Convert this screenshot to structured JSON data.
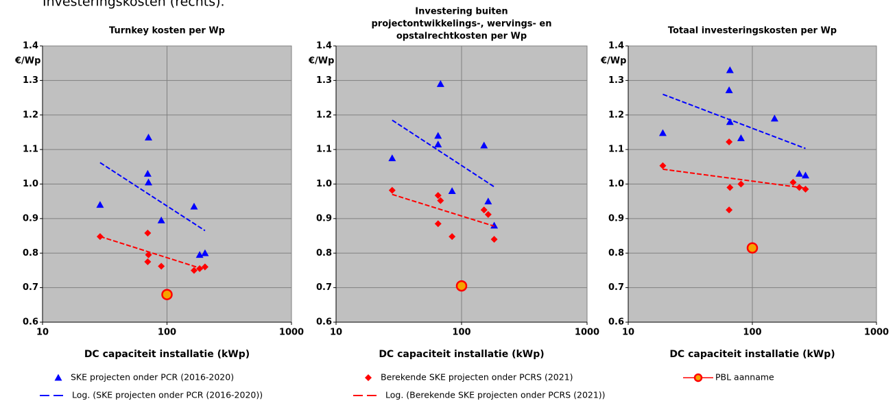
{
  "intro_text": "Investeringskosten (rechts).",
  "legend": [
    {
      "name": "SKE projecten onder PCR (2016-2020)",
      "color": "#0000ff",
      "marker": "triangle"
    },
    {
      "name": "Berekende SKE projecten onder PCRS (2021)",
      "color": "#ff0000",
      "marker": "diamond"
    },
    {
      "name": "PBL aanname",
      "color": "#ff0000",
      "marker": "circle-line"
    },
    {
      "name": "Log. (SKE projecten onder PCR (2016-2020))",
      "color": "#0000ff",
      "marker": "dash"
    },
    {
      "name": "Log. (Berekende SKE projecten onder PCRS (2021))",
      "color": "#ff0000",
      "marker": "dash"
    }
  ],
  "chart_data": [
    {
      "type": "scatter",
      "title": "Turnkey kosten per Wp",
      "y_label": "€/Wp",
      "x_label": "DC capaciteit installatie (kWp)",
      "x_scale": "log",
      "xlim": [
        10,
        1000
      ],
      "xticks": [
        10,
        100,
        1000
      ],
      "ylim": [
        0.6,
        1.4
      ],
      "yticks": [
        0.6,
        0.7,
        0.8,
        0.9,
        {
          "value": 1,
          "label": "1.0"
        },
        1.1,
        1.2,
        1.3,
        1.4
      ],
      "grid": true,
      "background": "#c0c0c0",
      "series": [
        {
          "marker": "triangle",
          "color": "#0000ff",
          "x": [
            29,
            71,
            70,
            71,
            90,
            165,
            183,
            202
          ],
          "values": [
            0.94,
            1.135,
            1.03,
            1.005,
            0.895,
            0.935,
            0.795,
            0.8
          ]
        },
        {
          "marker": "diamond",
          "color": "#ff0000",
          "x": [
            29,
            70,
            70,
            71,
            90,
            165,
            183,
            202
          ],
          "values": [
            0.848,
            0.858,
            0.775,
            0.795,
            0.762,
            0.75,
            0.755,
            0.76
          ]
        },
        {
          "marker": "circle",
          "color": "#ff0000",
          "fill": "#f5a300",
          "x": [
            100
          ],
          "values": [
            0.68
          ]
        },
        {
          "marker": "dash",
          "color": "#0000ff",
          "x": [
            29,
            202
          ],
          "values": [
            1.062,
            0.865
          ]
        },
        {
          "marker": "dash",
          "color": "#ff0000",
          "x": [
            29,
            202
          ],
          "values": [
            0.848,
            0.752
          ]
        }
      ]
    },
    {
      "type": "scatter",
      "title": [
        "Investering buiten",
        "projectontwikkelings-, wervings- en",
        "opstalrechtkosten per Wp"
      ],
      "y_label": "€/Wp",
      "x_label": "DC capaciteit installatie (kWp)",
      "x_scale": "log",
      "xlim": [
        10,
        1000
      ],
      "xticks": [
        10,
        100,
        1000
      ],
      "ylim": [
        0.6,
        1.4
      ],
      "yticks": [
        0.6,
        0.7,
        0.8,
        0.9,
        {
          "value": 1,
          "label": "1.0"
        },
        1.1,
        1.2,
        1.3,
        1.4
      ],
      "grid": true,
      "background": "#c0c0c0",
      "series": [
        {
          "marker": "triangle",
          "color": "#0000ff",
          "x": [
            28,
            68,
            65,
            65,
            84,
            151,
            163,
            182
          ],
          "values": [
            1.075,
            1.29,
            1.14,
            1.115,
            0.98,
            1.112,
            0.95,
            0.88
          ]
        },
        {
          "marker": "diamond",
          "color": "#ff0000",
          "x": [
            28,
            65,
            68,
            65,
            84,
            151,
            163,
            182
          ],
          "values": [
            0.982,
            0.967,
            0.952,
            0.885,
            0.848,
            0.925,
            0.912,
            0.84
          ]
        },
        {
          "marker": "circle",
          "color": "#ff0000",
          "fill": "#f5a300",
          "x": [
            100
          ],
          "values": [
            0.705
          ]
        },
        {
          "marker": "dash",
          "color": "#0000ff",
          "x": [
            28,
            182
          ],
          "values": [
            1.185,
            0.992
          ]
        },
        {
          "marker": "dash",
          "color": "#ff0000",
          "x": [
            28,
            182
          ],
          "values": [
            0.97,
            0.878
          ]
        }
      ]
    },
    {
      "type": "scatter",
      "title": "Totaal investeringskosten per Wp",
      "y_label": "€/Wp",
      "x_label": "DC capaciteit installatie (kWp)",
      "x_scale": "log",
      "xlim": [
        10,
        1000
      ],
      "xticks": [
        10,
        100,
        1000
      ],
      "ylim": [
        0.6,
        1.4
      ],
      "yticks": [
        0.6,
        0.7,
        0.8,
        0.9,
        {
          "value": 1,
          "label": "1.0"
        },
        1.1,
        1.2,
        1.3,
        1.4
      ],
      "grid": true,
      "background": "#c0c0c0",
      "series": [
        {
          "marker": "triangle",
          "color": "#0000ff",
          "x": [
            19,
            66,
            65,
            66,
            81,
            151,
            239,
            268
          ],
          "values": [
            1.148,
            1.33,
            1.272,
            1.18,
            1.133,
            1.19,
            1.03,
            1.025
          ]
        },
        {
          "marker": "diamond",
          "color": "#ff0000",
          "x": [
            19,
            65,
            66,
            65,
            81,
            213,
            239,
            268
          ],
          "values": [
            1.053,
            1.122,
            0.99,
            0.925,
            1.0,
            1.005,
            0.99,
            0.985
          ]
        },
        {
          "marker": "circle",
          "color": "#ff0000",
          "fill": "#f5a300",
          "x": [
            100
          ],
          "values": [
            0.815
          ]
        },
        {
          "marker": "dash",
          "color": "#0000ff",
          "x": [
            19,
            268
          ],
          "values": [
            1.26,
            1.103
          ]
        },
        {
          "marker": "dash",
          "color": "#ff0000",
          "x": [
            19,
            268
          ],
          "values": [
            1.043,
            0.988
          ]
        }
      ]
    }
  ]
}
